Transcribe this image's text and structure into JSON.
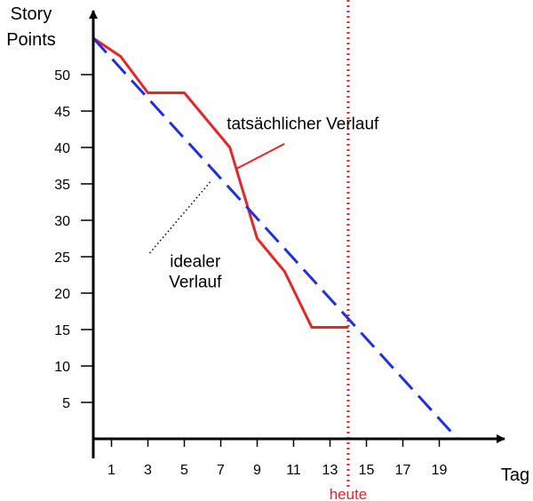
{
  "chart_data": {
    "type": "line",
    "ylabel": "Story\nPoints",
    "xlabel": "Tag",
    "xlim": [
      0,
      22
    ],
    "ylim": [
      0,
      55
    ],
    "x_ticks": [
      1,
      3,
      5,
      7,
      9,
      11,
      13,
      15,
      17,
      19
    ],
    "y_ticks": [
      5,
      10,
      15,
      20,
      25,
      30,
      35,
      40,
      45,
      50
    ],
    "grid": false,
    "series": [
      {
        "name": "tatsächlicher Verlauf",
        "color": "#ee2222",
        "style": "solid",
        "x": [
          0,
          1.5,
          3,
          5,
          7.5,
          9,
          10.5,
          12,
          14
        ],
        "y": [
          55,
          52.5,
          47.5,
          47.5,
          40,
          27.5,
          23,
          15.3,
          15.3
        ]
      },
      {
        "name": "idealer Verlauf",
        "color": "#1f2ee8",
        "style": "dashed",
        "x": [
          0,
          20
        ],
        "y": [
          55,
          0
        ]
      }
    ],
    "annotations": [
      {
        "lines": [
          "tatsächlicher Verlauf"
        ],
        "x": 11.5,
        "y": 42.5,
        "pointer_from": [
          10.5,
          40.5
        ],
        "pointer_to": [
          7.8,
          37
        ],
        "pointer_style": "solid",
        "pointer_color": "#ee2222"
      },
      {
        "lines": [
          "idealer",
          "Verlauf"
        ],
        "x": 5.6,
        "y": 23.6,
        "pointer_from": [
          3.1,
          25.5
        ],
        "pointer_to": [
          6.5,
          35.5
        ],
        "pointer_style": "dotted",
        "pointer_color": "#000000"
      }
    ],
    "today_marker": {
      "x": 14,
      "label": "heute",
      "color": "#ee2222"
    }
  }
}
